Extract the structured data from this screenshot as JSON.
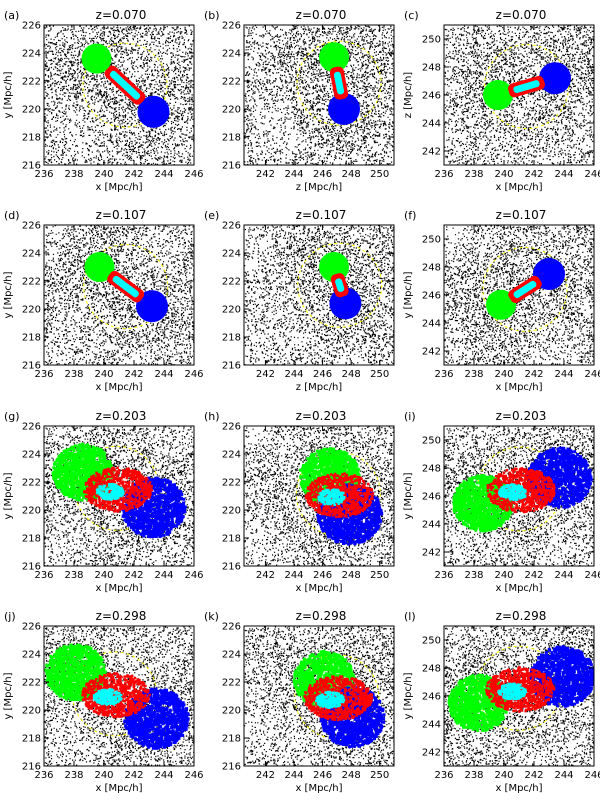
{
  "chart_data": [
    {
      "type": "scatter",
      "panel": "(a)",
      "redshift": "z=0.070",
      "xlabel": "x [Mpc/h]",
      "ylabel": "y [Mpc/h]",
      "xlim": [
        236,
        246
      ],
      "ylim": [
        216,
        226
      ],
      "xticks": [
        "236",
        "238",
        "240",
        "242",
        "244",
        "246"
      ],
      "yticks": [
        "216",
        "218",
        "220",
        "222",
        "224",
        "226"
      ],
      "green": [
        239.5,
        223.6
      ],
      "blue": [
        243.3,
        219.8
      ],
      "orient": "vertical"
    },
    {
      "type": "scatter",
      "panel": "(b)",
      "redshift": "z=0.070",
      "xlabel": "z [Mpc/h]",
      "ylabel": "",
      "xlim": [
        240.5,
        251
      ],
      "ylim": [
        216,
        226
      ],
      "xticks": [
        "242",
        "244",
        "246",
        "248",
        "250"
      ],
      "yticks": [
        "216",
        "218",
        "220",
        "222",
        "224",
        "226"
      ],
      "green": [
        246.8,
        223.7
      ],
      "blue": [
        247.5,
        220.0
      ],
      "orient": "vertical"
    },
    {
      "type": "scatter",
      "panel": "(c)",
      "redshift": "z=0.070",
      "xlabel": "x [Mpc/h]",
      "ylabel": "z [Mpc/h]",
      "xlim": [
        236,
        246
      ],
      "ylim": [
        241,
        251
      ],
      "xticks": [
        "236",
        "238",
        "240",
        "242",
        "244",
        "246"
      ],
      "yticks": [
        "242",
        "244",
        "246",
        "248",
        "250"
      ],
      "green": [
        239.6,
        246.0
      ],
      "blue": [
        243.4,
        247.2
      ],
      "orient": "horizontal"
    },
    {
      "type": "scatter",
      "panel": "(d)",
      "redshift": "z=0.107",
      "xlabel": "x [Mpc/h]",
      "ylabel": "y [Mpc/h]",
      "xlim": [
        236,
        246
      ],
      "ylim": [
        216,
        226
      ],
      "xticks": [
        "236",
        "238",
        "240",
        "242",
        "244",
        "246"
      ],
      "yticks": [
        "216",
        "218",
        "220",
        "222",
        "224",
        "226"
      ],
      "green": [
        239.7,
        223.0
      ],
      "blue": [
        243.2,
        220.2
      ],
      "orient": "vertical"
    },
    {
      "type": "scatter",
      "panel": "(e)",
      "redshift": "z=0.107",
      "xlabel": "z [Mpc/h]",
      "ylabel": "",
      "xlim": [
        240.5,
        251
      ],
      "ylim": [
        216,
        226
      ],
      "xticks": [
        "242",
        "244",
        "246",
        "248",
        "250"
      ],
      "yticks": [
        "216",
        "218",
        "220",
        "222",
        "224",
        "226"
      ],
      "green": [
        246.8,
        223.0
      ],
      "blue": [
        247.6,
        220.4
      ],
      "orient": "vertical"
    },
    {
      "type": "scatter",
      "panel": "(f)",
      "redshift": "z=0.107",
      "xlabel": "x [Mpc/h]",
      "ylabel": "y [Mpc/h]",
      "xlim": [
        236,
        246
      ],
      "ylim": [
        241,
        251
      ],
      "xticks": [
        "236",
        "238",
        "240",
        "242",
        "244",
        "246"
      ],
      "yticks": [
        "242",
        "244",
        "246",
        "248",
        "250"
      ],
      "green": [
        239.8,
        245.3
      ],
      "blue": [
        243.0,
        247.5
      ],
      "orient": "horizontal"
    },
    {
      "type": "scatter",
      "panel": "(g)",
      "redshift": "z=0.203",
      "xlabel": "x [Mpc/h]",
      "ylabel": "y [Mpc/h]",
      "xlim": [
        236,
        246
      ],
      "ylim": [
        216,
        226
      ],
      "xticks": [
        "236",
        "238",
        "240",
        "242",
        "244",
        "246"
      ],
      "yticks": [
        "216",
        "218",
        "220",
        "222",
        "224",
        "226"
      ],
      "green": [
        238.5,
        222.8
      ],
      "blue": [
        243.2,
        220.3
      ],
      "orient": "spread"
    },
    {
      "type": "scatter",
      "panel": "(h)",
      "redshift": "z=0.203",
      "xlabel": "x [Mpc/h]",
      "ylabel": "",
      "xlim": [
        240.5,
        251
      ],
      "ylim": [
        216,
        226
      ],
      "xticks": [
        "242",
        "244",
        "246",
        "248",
        "250"
      ],
      "yticks": [
        "216",
        "218",
        "220",
        "222",
        "224",
        "226"
      ],
      "green": [
        246.4,
        222.5
      ],
      "blue": [
        247.8,
        219.8
      ],
      "orient": "spread"
    },
    {
      "type": "scatter",
      "panel": "(i)",
      "redshift": "z=0.203",
      "xlabel": "x [Mpc/h]",
      "ylabel": "y [Mpc/h]",
      "xlim": [
        236,
        246
      ],
      "ylim": [
        241,
        251
      ],
      "xticks": [
        "236",
        "238",
        "240",
        "242",
        "244",
        "246"
      ],
      "yticks": [
        "242",
        "244",
        "246",
        "248",
        "250"
      ],
      "green": [
        238.5,
        245.6
      ],
      "blue": [
        243.6,
        247.4
      ],
      "orient": "spread"
    },
    {
      "type": "scatter",
      "panel": "(j)",
      "redshift": "z=0.298",
      "xlabel": "x [Mpc/h]",
      "ylabel": "y [Mpc/h]",
      "xlim": [
        236,
        246
      ],
      "ylim": [
        216,
        226
      ],
      "xticks": [
        "236",
        "238",
        "240",
        "242",
        "244",
        "246"
      ],
      "yticks": [
        "216",
        "218",
        "220",
        "222",
        "224",
        "226"
      ],
      "green": [
        238.0,
        222.8
      ],
      "blue": [
        243.4,
        219.5
      ],
      "orient": "spread"
    },
    {
      "type": "scatter",
      "panel": "(k)",
      "redshift": "z=0.298",
      "xlabel": "x [Mpc/h]",
      "ylabel": "",
      "xlim": [
        240.5,
        251
      ],
      "ylim": [
        216,
        226
      ],
      "xticks": [
        "242",
        "244",
        "246",
        "248",
        "250"
      ],
      "yticks": [
        "216",
        "218",
        "220",
        "222",
        "224",
        "226"
      ],
      "green": [
        246.0,
        222.3
      ],
      "blue": [
        248.0,
        219.6
      ],
      "orient": "spread"
    },
    {
      "type": "scatter",
      "panel": "(l)",
      "redshift": "z=0.298",
      "xlabel": "x [Mpc/h]",
      "ylabel": "y [Mpc/h]",
      "xlim": [
        236,
        246
      ],
      "ylim": [
        241,
        251
      ],
      "xticks": [
        "236",
        "238",
        "240",
        "242",
        "244",
        "246"
      ],
      "yticks": [
        "242",
        "244",
        "246",
        "248",
        "250"
      ],
      "green": [
        238.2,
        245.6
      ],
      "blue": [
        243.8,
        247.5
      ],
      "orient": "spread"
    }
  ],
  "colors": {
    "background_particles": "#000000",
    "halo_green": "#00ff00",
    "halo_blue": "#0000ff",
    "bridge_red": "#ff0000",
    "core_cyan": "#00ffff",
    "circle_yellow": "#ffff00"
  }
}
